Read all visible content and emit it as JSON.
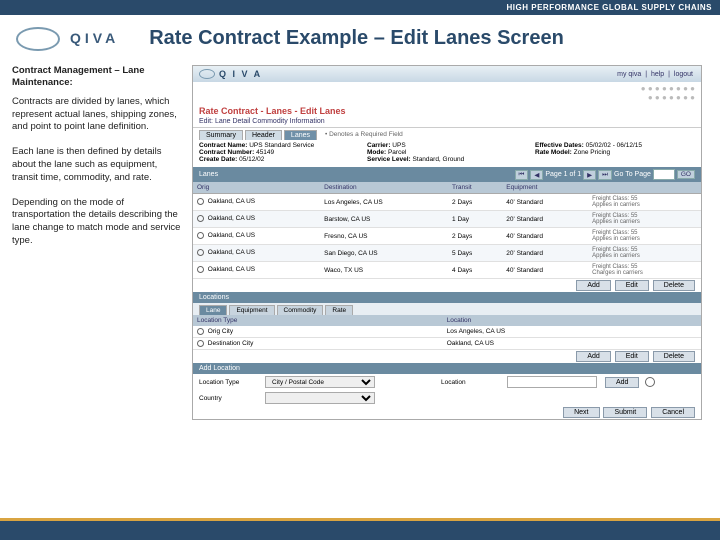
{
  "banner": "HIGH PERFORMANCE GLOBAL SUPPLY CHAINS",
  "brand": "QIVA",
  "title": "Rate Contract Example – Edit Lanes Screen",
  "left": {
    "subtitle": "Contract Management – Lane Maintenance:",
    "p1": "Contracts are divided by lanes, which represent actual lanes, shipping zones, and point to point lane definition.",
    "p2": "Each lane is then defined by details about the lane such as equipment, transit time, commodity, and rate.",
    "p3": "Depending on the mode of transportation the details describing the lane change to match mode and service type."
  },
  "app": {
    "brand": "Q I V A",
    "links": {
      "myqiva": "my qiva",
      "help": "help",
      "logout": "logout"
    },
    "screenTitle": "Rate Contract - Lanes - Edit Lanes",
    "subtitle": "Edit: Lane Detail Commodity Information",
    "tabs": [
      "Summary",
      "Header",
      "Lanes"
    ],
    "activeTab": 2,
    "tabNote": "• Denotes a Required Field",
    "info": {
      "contractName": {
        "label": "Contract Name:",
        "value": "UPS Standard Service"
      },
      "carrier": {
        "label": "Carrier:",
        "value": "UPS"
      },
      "effectiveDates": {
        "label": "Effective Dates:",
        "value": "05/02/02 - 06/12/15"
      },
      "contractNumber": {
        "label": "Contract Number:",
        "value": "45149"
      },
      "mode": {
        "label": "Mode:",
        "value": "Parcel"
      },
      "rateModel": {
        "label": "Rate Model:",
        "value": "Zone Pricing"
      },
      "serviceLevel": {
        "label": "Service Level:",
        "value": "Standard, Ground"
      },
      "createDate": {
        "label": "Create Date:",
        "value": "05/12/02"
      }
    },
    "lanes": {
      "header": "Lanes",
      "pager": {
        "page": "Page 1 of 1",
        "goto": "Go To Page"
      },
      "columns": [
        "Orig",
        "Destination",
        "Transit",
        "Equipment"
      ],
      "rows": [
        {
          "orig": "Oakland, CA US",
          "dest": "Los Angeles, CA US",
          "transit": "2 Days",
          "equip": "40' Standard",
          "extra": "Freight Class: 55\nApplies in carriers"
        },
        {
          "orig": "Oakland, CA US",
          "dest": "Barstow, CA US",
          "transit": "1 Day",
          "equip": "20' Standard",
          "extra": "Freight Class: 55\nApplies in carriers"
        },
        {
          "orig": "Oakland, CA US",
          "dest": "Fresno, CA US",
          "transit": "2 Days",
          "equip": "40' Standard",
          "extra": "Freight Class: 55\nApplies in carriers"
        },
        {
          "orig": "Oakland, CA US",
          "dest": "San Diego, CA US",
          "transit": "5 Days",
          "equip": "20' Standard",
          "extra": "Freight Class: 55\nApplies in carriers"
        },
        {
          "orig": "Oakland, CA US",
          "dest": "Waco, TX US",
          "transit": "4 Days",
          "equip": "40' Standard",
          "extra": "Freight Class: 55\nCharges in carriers"
        }
      ],
      "buttons": {
        "add": "Add",
        "edit": "Edit",
        "delete": "Delete"
      }
    },
    "locations": {
      "header": "Locations",
      "subtabs": [
        "Lane",
        "Equipment",
        "Commodity",
        "Rate"
      ],
      "activeSubtab": 0,
      "columns": [
        "Location Type",
        "Location"
      ],
      "rows": [
        {
          "type": "Orig City",
          "loc": "Los Angeles, CA US"
        },
        {
          "type": "Destination City",
          "loc": "Oakland, CA US"
        }
      ],
      "buttons": {
        "add": "Add",
        "edit": "Edit",
        "delete": "Delete"
      }
    },
    "addLocation": {
      "header": "Add Location",
      "locationType": {
        "label": "Location Type",
        "selected": "City / Postal Code"
      },
      "location": {
        "label": "Location"
      },
      "country": {
        "label": "Country"
      },
      "buttons": {
        "add": "Add",
        "search": "⌕"
      }
    },
    "footerButtons": {
      "next": "Next",
      "submit": "Submit",
      "cancel": "Cancel"
    }
  },
  "colors": {
    "bannerBg": "#2a4a6a",
    "accent": "#d9a441",
    "titleColor": "#2a4a6a",
    "screenTitle": "#c04040",
    "sectionBar": "#6a8aa0",
    "tableHeader": "#b8c8d5"
  }
}
